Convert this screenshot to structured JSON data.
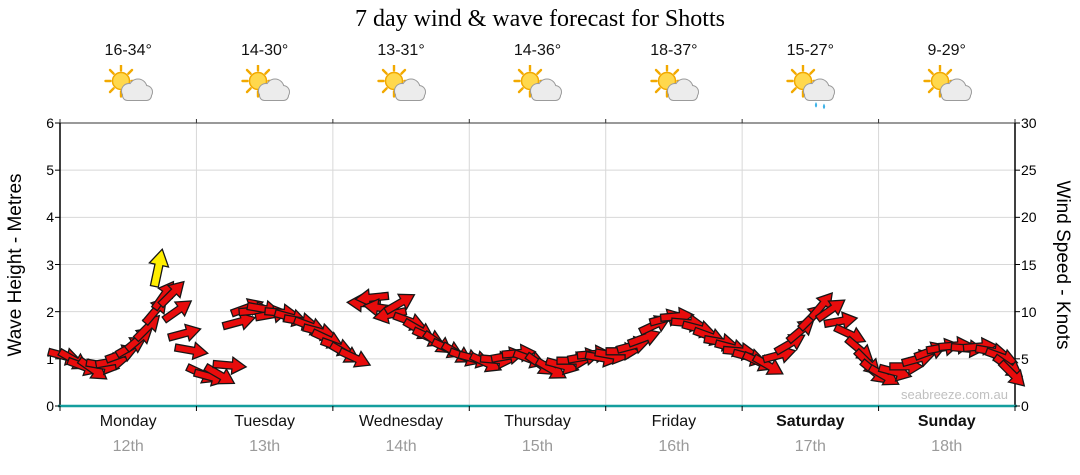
{
  "title": "7 day wind & wave forecast for Shotts",
  "watermark": "seabreeze.com.au",
  "axes": {
    "left_label": "Wave Height - Metres",
    "right_label": "Wind Speed - Knots",
    "left_ticks": [
      0,
      1,
      2,
      3,
      4,
      5,
      6
    ],
    "right_ticks": [
      0,
      5,
      10,
      15,
      20,
      25,
      30
    ]
  },
  "days": [
    {
      "name": "Monday",
      "date": "12th",
      "temp": "16-34°",
      "icon": "sun-cloud",
      "bold": false
    },
    {
      "name": "Tuesday",
      "date": "13th",
      "temp": "14-30°",
      "icon": "sun-cloud",
      "bold": false
    },
    {
      "name": "Wednesday",
      "date": "14th",
      "temp": "13-31°",
      "icon": "sun-cloud",
      "bold": false
    },
    {
      "name": "Thursday",
      "date": "15th",
      "temp": "14-36°",
      "icon": "sun-cloud",
      "bold": false
    },
    {
      "name": "Friday",
      "date": "16th",
      "temp": "18-37°",
      "icon": "sun-cloud",
      "bold": false
    },
    {
      "name": "Saturday",
      "date": "17th",
      "temp": "15-27°",
      "icon": "sun-cloud-rain",
      "bold": true
    },
    {
      "name": "Sunday",
      "date": "18th",
      "temp": "9-29°",
      "icon": "sun-cloud",
      "bold": true
    }
  ],
  "colors": {
    "arrow_red": "#e80c0c",
    "arrow_yellow": "#ffee00",
    "arrow_outline": "#161616",
    "grid": "#d8d8d8",
    "axis_black": "#000000",
    "baseline_teal": "#149e9e",
    "watermark_grey": "#c0c0c0"
  },
  "chart_data": {
    "type": "scatter",
    "title": "7 day wind & wave forecast for Shotts",
    "xlabel": "",
    "x_categories": [
      "Monday 12th",
      "Tuesday 13th",
      "Wednesday 14th",
      "Thursday 15th",
      "Friday 16th",
      "Saturday 17th",
      "Sunday 18th"
    ],
    "ylabel_left": "Wave Height - Metres",
    "ylim_left": [
      0,
      6
    ],
    "yticks_left": [
      0,
      1,
      2,
      3,
      4,
      5,
      6
    ],
    "ylabel_right": "Wind Speed - Knots",
    "ylim_right": [
      0,
      30
    ],
    "yticks_right": [
      0,
      5,
      10,
      15,
      20,
      25,
      30
    ],
    "grid": true,
    "legend": "none",
    "marker": "wind-direction-arrow",
    "point_format": [
      "day_offset_0to7",
      "wind_speed_knots",
      "direction_deg_0_east_clockwise"
    ],
    "series": [
      {
        "name": "Wind speed & direction",
        "color": "#e80c0c",
        "points": [
          [
            0.03,
            5.3,
            15
          ],
          [
            0.1,
            4.9,
            30
          ],
          [
            0.17,
            4.2,
            20
          ],
          [
            0.24,
            3.9,
            35
          ],
          [
            0.31,
            4.3,
            10
          ],
          [
            0.38,
            4.7,
            -10
          ],
          [
            0.45,
            5.5,
            -20
          ],
          [
            0.52,
            6.3,
            -30
          ],
          [
            0.58,
            7.1,
            -40
          ],
          [
            0.64,
            8.3,
            -45
          ],
          [
            0.7,
            10.1,
            -50
          ],
          [
            0.76,
            11.7,
            -55
          ],
          [
            0.82,
            11.9,
            -45
          ],
          [
            0.86,
            10.1,
            -35
          ],
          [
            0.91,
            7.7,
            -15
          ],
          [
            0.96,
            5.9,
            10
          ],
          [
            1.04,
            3.4,
            25
          ],
          [
            1.1,
            3.1,
            15
          ],
          [
            1.17,
            3.3,
            30
          ],
          [
            1.24,
            4.3,
            5
          ],
          [
            1.31,
            8.9,
            -15
          ],
          [
            1.37,
            10.4,
            -20
          ],
          [
            1.43,
            10.1,
            -5
          ],
          [
            1.49,
            10.3,
            10
          ],
          [
            1.55,
            9.7,
            -10
          ],
          [
            1.62,
            9.9,
            5
          ],
          [
            1.69,
            9.4,
            15
          ],
          [
            1.76,
            9.0,
            10
          ],
          [
            1.83,
            8.5,
            20
          ],
          [
            1.9,
            7.9,
            15
          ],
          [
            1.96,
            7.1,
            25
          ],
          [
            2.03,
            6.3,
            20
          ],
          [
            2.09,
            5.6,
            30
          ],
          [
            2.16,
            5.1,
            25
          ],
          [
            2.23,
            10.9,
            183
          ],
          [
            2.29,
            11.5,
            174
          ],
          [
            2.35,
            10.4,
            188
          ],
          [
            2.42,
            9.7,
            168
          ],
          [
            2.49,
            10.9,
            -30
          ],
          [
            2.56,
            9.0,
            20
          ],
          [
            2.63,
            8.1,
            30
          ],
          [
            2.7,
            7.3,
            25
          ],
          [
            2.77,
            6.7,
            35
          ],
          [
            2.84,
            6.1,
            25
          ],
          [
            2.91,
            5.6,
            30
          ],
          [
            2.97,
            5.2,
            20
          ],
          [
            3.04,
            5.0,
            15
          ],
          [
            3.12,
            4.6,
            25
          ],
          [
            3.2,
            4.9,
            5
          ],
          [
            3.28,
            5.3,
            -10
          ],
          [
            3.36,
            5.6,
            -5
          ],
          [
            3.44,
            5.0,
            20
          ],
          [
            3.52,
            4.4,
            35
          ],
          [
            3.6,
            3.9,
            30
          ],
          [
            3.68,
            4.3,
            15
          ],
          [
            3.76,
            4.8,
            0
          ],
          [
            3.84,
            5.2,
            -10
          ],
          [
            3.91,
            5.5,
            -5
          ],
          [
            3.97,
            5.1,
            10
          ],
          [
            4.04,
            5.4,
            10
          ],
          [
            4.12,
            5.8,
            0
          ],
          [
            4.2,
            6.4,
            -15
          ],
          [
            4.28,
            7.2,
            -20
          ],
          [
            4.36,
            8.6,
            -25
          ],
          [
            4.44,
            9.3,
            -15
          ],
          [
            4.52,
            9.5,
            -5
          ],
          [
            4.6,
            8.8,
            5
          ],
          [
            4.68,
            8.2,
            15
          ],
          [
            4.76,
            7.4,
            20
          ],
          [
            4.84,
            6.8,
            10
          ],
          [
            4.92,
            6.2,
            15
          ],
          [
            4.98,
            5.8,
            5
          ],
          [
            5.05,
            5.2,
            15
          ],
          [
            5.12,
            4.7,
            25
          ],
          [
            5.19,
            4.3,
            30
          ],
          [
            5.27,
            5.4,
            -15
          ],
          [
            5.35,
            6.6,
            -30
          ],
          [
            5.43,
            8.0,
            -40
          ],
          [
            5.51,
            9.4,
            -45
          ],
          [
            5.58,
            10.6,
            -50
          ],
          [
            5.65,
            10.2,
            -35
          ],
          [
            5.72,
            9.0,
            -10
          ],
          [
            5.79,
            7.6,
            25
          ],
          [
            5.86,
            6.0,
            40
          ],
          [
            5.92,
            4.6,
            45
          ],
          [
            5.97,
            3.6,
            40
          ],
          [
            6.04,
            3.2,
            30
          ],
          [
            6.12,
            3.6,
            15
          ],
          [
            6.2,
            4.2,
            0
          ],
          [
            6.29,
            5.0,
            -15
          ],
          [
            6.38,
            5.8,
            -20
          ],
          [
            6.47,
            6.2,
            -10
          ],
          [
            6.56,
            6.4,
            -5
          ],
          [
            6.65,
            6.1,
            5
          ],
          [
            6.74,
            6.3,
            -5
          ],
          [
            6.83,
            5.8,
            10
          ],
          [
            6.9,
            5.2,
            20
          ],
          [
            6.95,
            4.2,
            35
          ],
          [
            6.98,
            3.4,
            45
          ]
        ]
      }
    ],
    "highlight": {
      "point": [
        0.72,
        14.6,
        -78
      ],
      "color": "#ffee00"
    }
  }
}
